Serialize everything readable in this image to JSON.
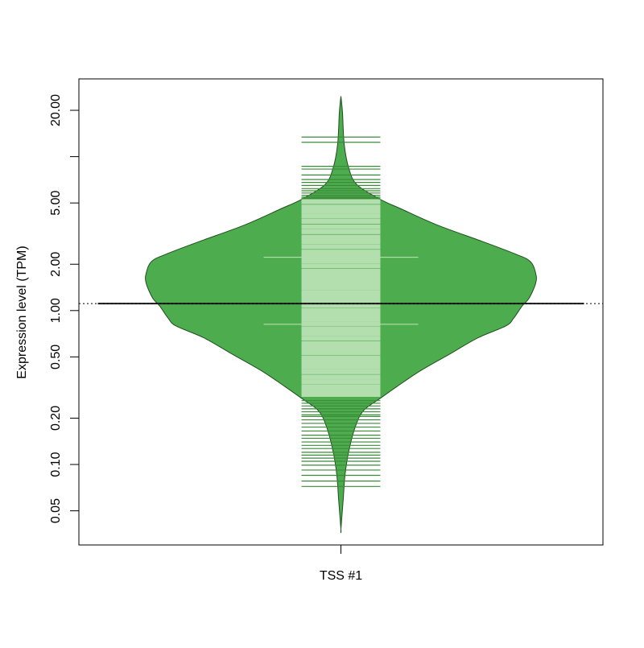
{
  "chart_data": {
    "type": "beanplot",
    "y_label": "Expression level (TPM)",
    "categories": [
      "TSS #1"
    ],
    "log_y": true,
    "ylim": [
      0.03,
      32
    ],
    "yticks": [
      {
        "value": 0.05,
        "label": "0.05"
      },
      {
        "value": 0.1,
        "label": "0.10"
      },
      {
        "value": 0.2,
        "label": "0.20"
      },
      {
        "value": 0.5,
        "label": "0.50"
      },
      {
        "value": 1,
        "label": "1.00"
      },
      {
        "value": 2,
        "label": "2.00"
      },
      {
        "value": 5,
        "label": "5.00"
      },
      {
        "value": 10,
        "label": null
      },
      {
        "value": 20,
        "label": "20.00"
      }
    ],
    "overall_mean": 1.11,
    "colors": {
      "fill": "#4dac4d",
      "border": "#1f4f1f",
      "line_dark": "#3a8a3a",
      "line_light": "#b3deae",
      "mean": "#1a1a1a"
    },
    "beans": [
      {
        "mean": 1.11,
        "quantile_lines": [
          2.22,
          0.815
        ],
        "density": {
          "y": [
            24.7,
            19.4,
            12.0,
            8.35,
            6.56,
            5.28,
            4.57,
            3.59,
            2.82,
            2.35,
            2.09,
            1.74,
            1.51,
            1.21,
            1.07,
            0.897,
            0.795,
            0.664,
            0.521,
            0.41,
            0.322,
            0.269,
            0.224,
            0.176,
            0.123,
            0.0855,
            0.0596,
            0.0381
          ],
          "values": [
            0,
            0.008,
            0.017,
            0.041,
            0.083,
            0.202,
            0.31,
            0.496,
            0.723,
            0.888,
            0.971,
            1,
            1,
            0.967,
            0.93,
            0.888,
            0.847,
            0.702,
            0.558,
            0.413,
            0.289,
            0.202,
            0.116,
            0.074,
            0.041,
            0.021,
            0.012,
            0
          ]
        },
        "values": [
          13.4,
          12.4,
          8.65,
          8.3,
          7.6,
          7.1,
          6.8,
          6.5,
          6.2,
          6.0,
          5.8,
          5.6,
          5.45,
          5.35,
          5.1,
          4.7,
          4.4,
          4.1,
          3.8,
          3.5,
          3.25,
          3.0,
          2.8,
          2.6,
          2.4,
          2.25,
          2.1,
          1.95,
          1.8,
          1.7,
          1.6,
          1.5,
          1.4,
          1.3,
          1.22,
          1.15,
          1.08,
          1.0,
          0.94,
          0.88,
          0.82,
          0.76,
          0.71,
          0.66,
          0.61,
          0.57,
          0.53,
          0.49,
          0.46,
          0.43,
          0.4,
          0.37,
          0.345,
          0.32,
          0.3,
          0.285,
          0.26,
          0.25,
          0.24,
          0.23,
          0.22,
          0.21,
          0.205,
          0.195,
          0.185,
          0.175,
          0.165,
          0.155,
          0.148,
          0.14,
          0.133,
          0.127,
          0.12,
          0.115,
          0.11,
          0.105,
          0.099,
          0.092,
          0.085,
          0.078,
          0.072
        ]
      }
    ]
  }
}
